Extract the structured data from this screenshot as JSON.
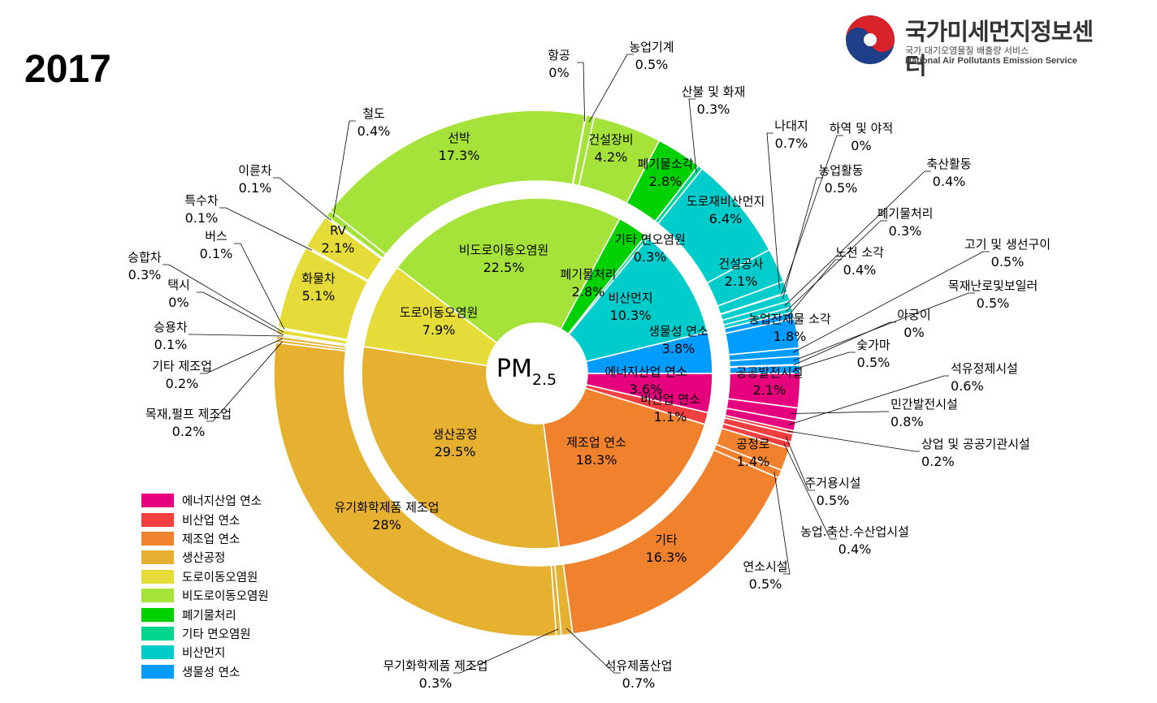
{
  "year": "2017",
  "logo": {
    "name": "국가미세먼지정보센터",
    "subtitle": "국가 대기오염물질 배출량 서비스",
    "english": "National Air Pollutants Emission Service"
  },
  "chart_data": {
    "type": "pie",
    "subtype": "nested-donut",
    "title": "PM",
    "title_sub": "2.5",
    "legend_position": "bottom-left",
    "inner": [
      {
        "name": "에너지산업 연소",
        "value": 3.6,
        "color": "#E6007E"
      },
      {
        "name": "비산업 연소",
        "value": 1.1,
        "color": "#F23F3F"
      },
      {
        "name": "제조업 연소",
        "value": 18.3,
        "color": "#F0822D"
      },
      {
        "name": "생산공정",
        "value": 29.5,
        "color": "#E6B030"
      },
      {
        "name": "도로이동오염원",
        "value": 7.9,
        "color": "#E5DC3A"
      },
      {
        "name": "비도로이동오염원",
        "value": 22.5,
        "color": "#A5E33A"
      },
      {
        "name": "폐기물처리",
        "value": 2.8,
        "color": "#00D100"
      },
      {
        "name": "기타 면오염원",
        "value": 0.3,
        "color": "#00D68F"
      },
      {
        "name": "비산먼지",
        "value": 10.3,
        "color": "#00CCCC"
      },
      {
        "name": "생물성 연소",
        "value": 3.8,
        "color": "#009CFF"
      }
    ],
    "outer": [
      {
        "name": "공공발전시설",
        "value": 2.1,
        "color": "#E6007E"
      },
      {
        "name": "민간발전시설",
        "value": 0.8,
        "color": "#E6007E"
      },
      {
        "name": "석유정제시설",
        "value": 0.6,
        "color": "#E6007E"
      },
      {
        "name": "상업 및 공공기관시설",
        "value": 0.2,
        "color": "#F23F3F"
      },
      {
        "name": "주거용시설",
        "value": 0.5,
        "color": "#F23F3F"
      },
      {
        "name": "농업.축산.수산업시설",
        "value": 0.4,
        "color": "#F23F3F"
      },
      {
        "name": "공정로",
        "value": 1.4,
        "color": "#F0822D"
      },
      {
        "name": "연소시설",
        "value": 0.5,
        "color": "#F0822D"
      },
      {
        "name": "기타",
        "value": 16.3,
        "color": "#F0822D"
      },
      {
        "name": "석유제품산업",
        "value": 0.7,
        "color": "#E6B030"
      },
      {
        "name": "무기화학제품 제조업",
        "value": 0.3,
        "color": "#E6B030"
      },
      {
        "name": "유기화학제품 제조업",
        "value": 28,
        "color": "#E6B030"
      },
      {
        "name": "목재,펄프 제조업",
        "value": 0.2,
        "color": "#E6B030"
      },
      {
        "name": "기타 제조업",
        "value": 0.2,
        "color": "#E6B030"
      },
      {
        "name": "승용차",
        "value": 0.1,
        "color": "#E5DC3A"
      },
      {
        "name": "택시",
        "value": 0,
        "color": "#E5DC3A"
      },
      {
        "name": "승합차",
        "value": 0.3,
        "color": "#E5DC3A"
      },
      {
        "name": "버스",
        "value": 0.1,
        "color": "#E5DC3A"
      },
      {
        "name": "화물차",
        "value": 5.1,
        "color": "#E5DC3A"
      },
      {
        "name": "특수차",
        "value": 0.1,
        "color": "#E5DC3A"
      },
      {
        "name": "RV",
        "value": 2.1,
        "color": "#E5DC3A"
      },
      {
        "name": "이륜차",
        "value": 0.1,
        "color": "#E5DC3A"
      },
      {
        "name": "철도",
        "value": 0.4,
        "color": "#A5E33A"
      },
      {
        "name": "선박",
        "value": 17.3,
        "color": "#A5E33A"
      },
      {
        "name": "항공",
        "value": 0,
        "color": "#A5E33A"
      },
      {
        "name": "농업기계",
        "value": 0.5,
        "color": "#A5E33A"
      },
      {
        "name": "건설장비",
        "value": 4.2,
        "color": "#A5E33A"
      },
      {
        "name": "폐기물소각",
        "value": 2.8,
        "color": "#00D100"
      },
      {
        "name": "산불 및 화재",
        "value": 0.3,
        "color": "#00D68F"
      },
      {
        "name": "도로재비산먼지",
        "value": 6.4,
        "color": "#00CCCC"
      },
      {
        "name": "건설공사",
        "value": 2.1,
        "color": "#00CCCC"
      },
      {
        "name": "나대지",
        "value": 0.7,
        "color": "#00CCCC"
      },
      {
        "name": "하역 및 야적",
        "value": 0,
        "color": "#00CCCC"
      },
      {
        "name": "농업활동",
        "value": 0.5,
        "color": "#00CCCC"
      },
      {
        "name": "축산활동",
        "value": 0.4,
        "color": "#00CCCC"
      },
      {
        "name": "폐기물처리",
        "value": 0.3,
        "color": "#00CCCC"
      },
      {
        "name": "노천 소각",
        "value": 0.4,
        "color": "#009CFF"
      },
      {
        "name": "농업잔재물 소각",
        "value": 1.8,
        "color": "#009CFF"
      },
      {
        "name": "고기 및 생선구이",
        "value": 0.5,
        "color": "#009CFF"
      },
      {
        "name": "목재난로및보일러",
        "value": 0.5,
        "color": "#009CFF"
      },
      {
        "name": "아궁이",
        "value": 0,
        "color": "#009CFF"
      },
      {
        "name": "숯가마",
        "value": 0.5,
        "color": "#009CFF"
      }
    ]
  }
}
